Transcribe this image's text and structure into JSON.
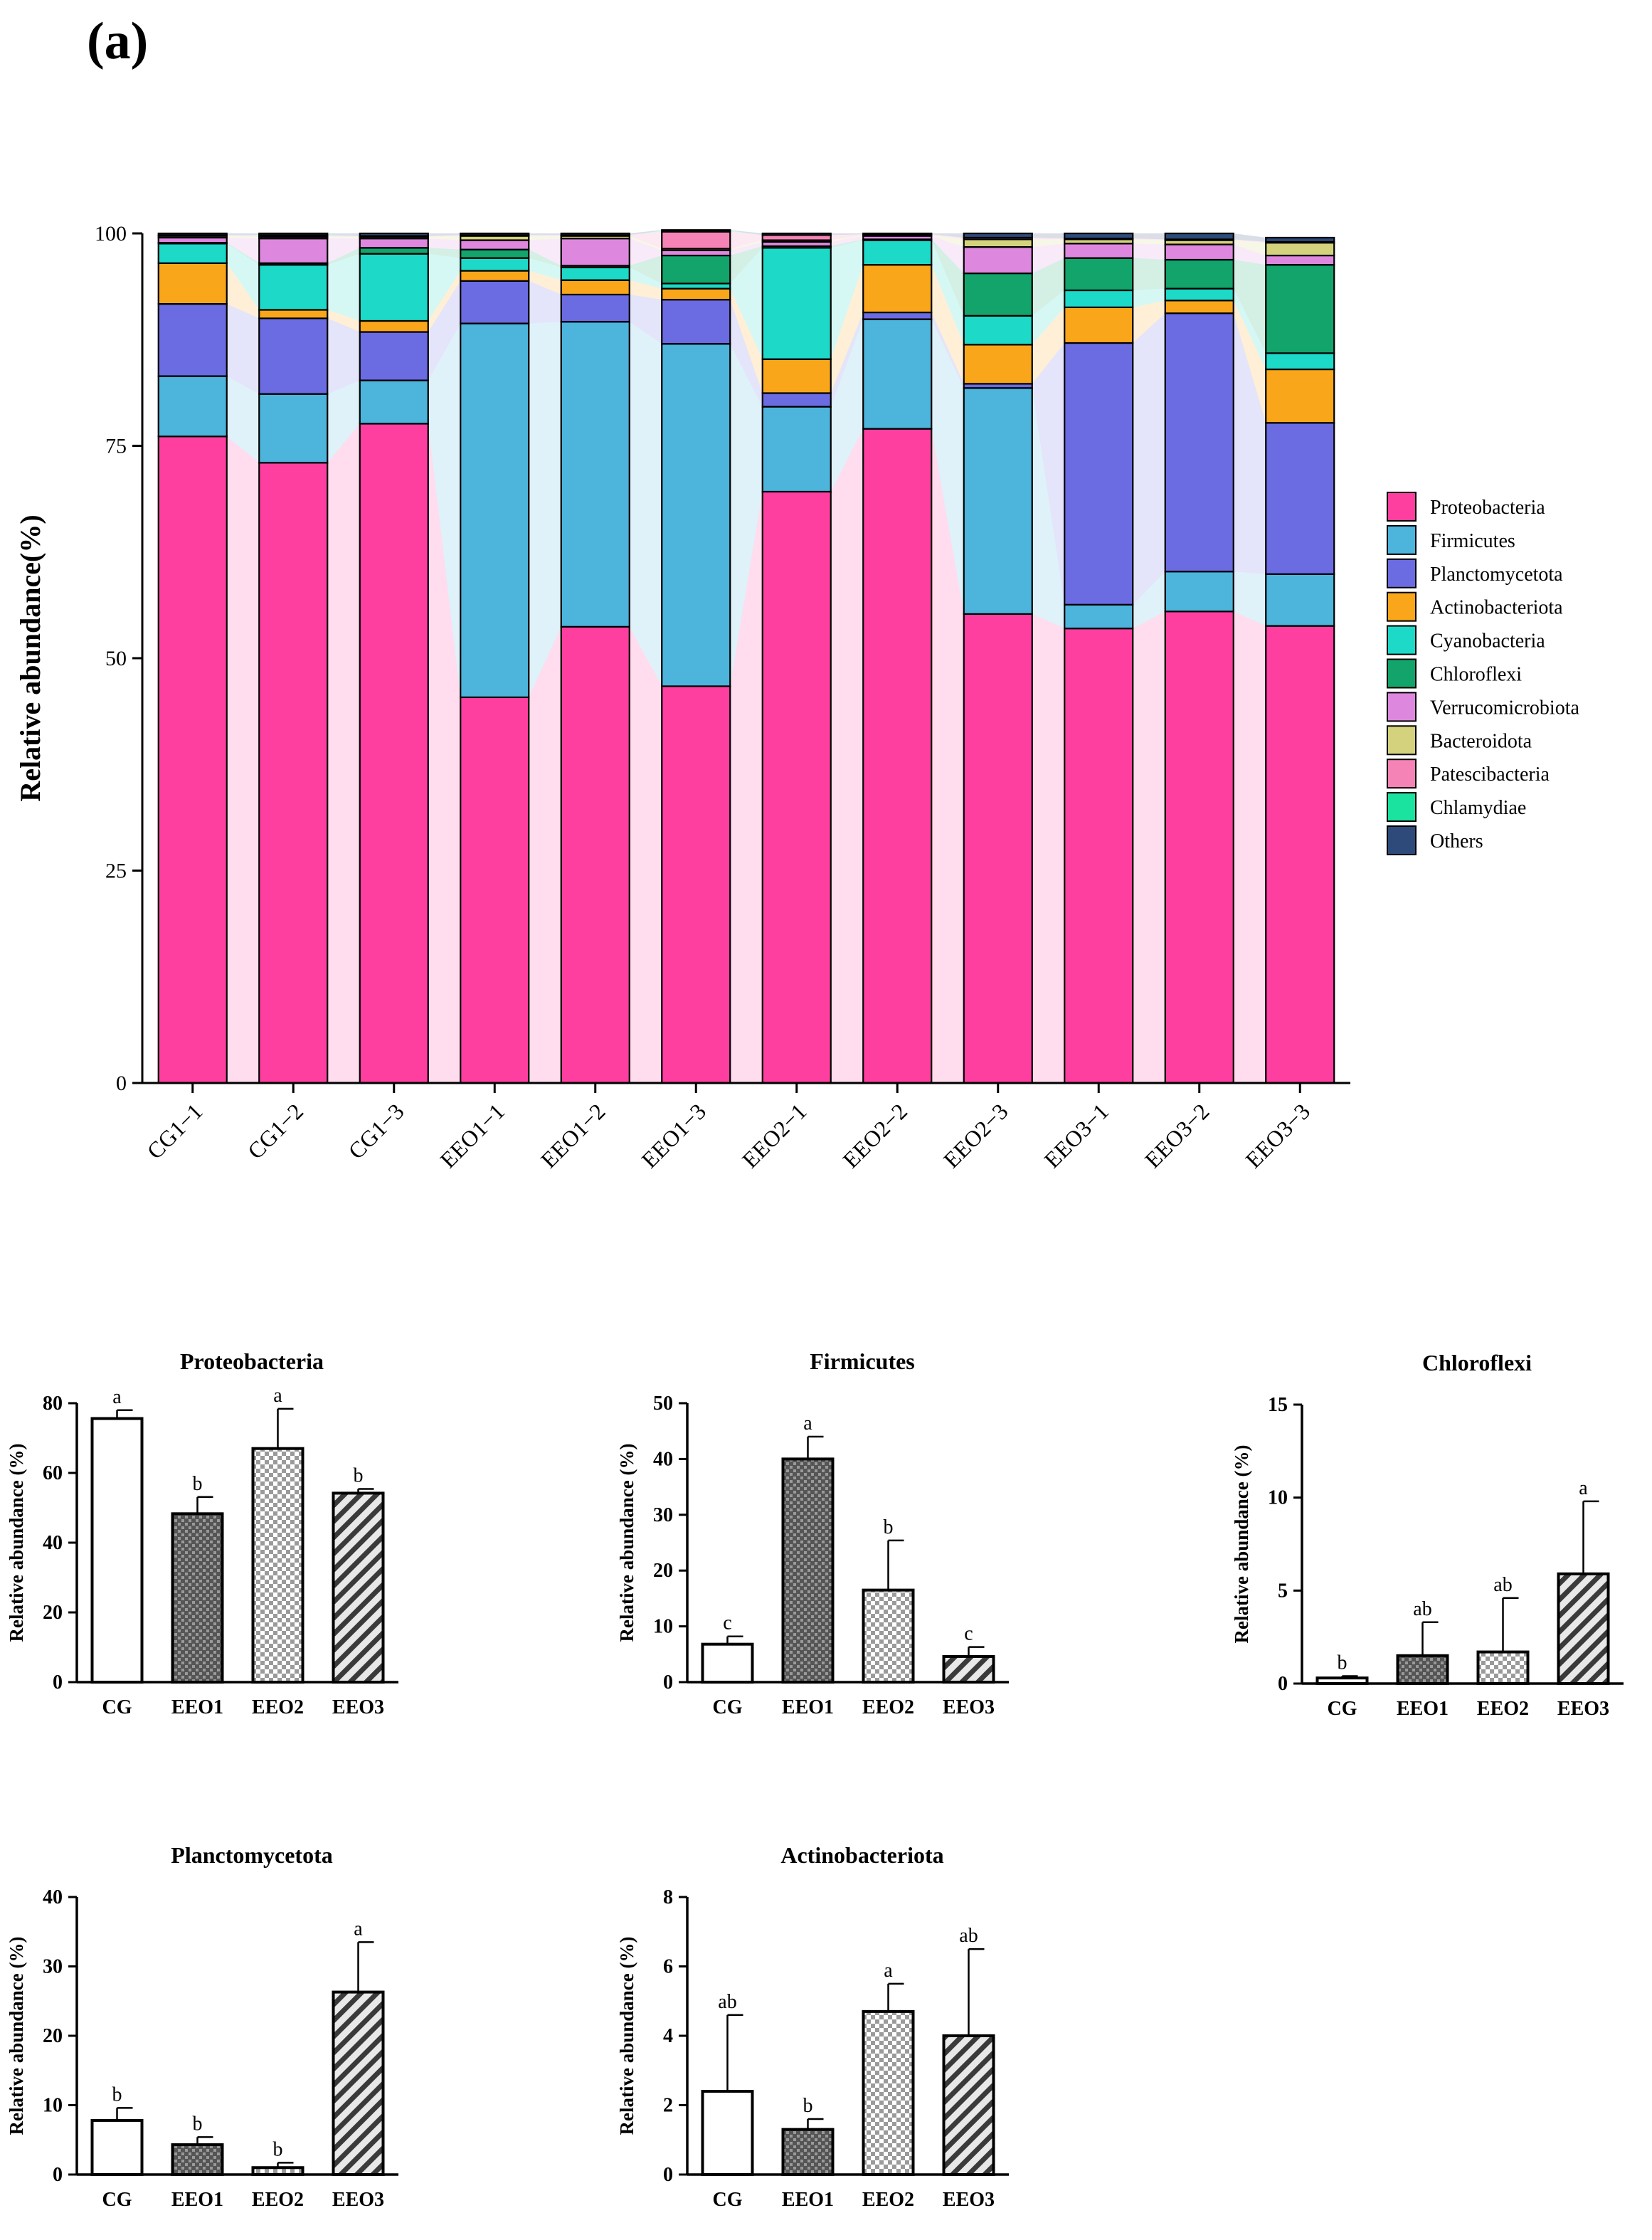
{
  "panel_label": "(a)",
  "colors": {
    "Proteobacteria": "#ff3fa0",
    "Firmicutes": "#4db4dc",
    "Planctomycetota": "#6b6be2",
    "Actinobacteriota": "#f9a61a",
    "Cyanobacteria": "#1dd9c7",
    "Chloroflexi": "#12a46a",
    "Verrucomicrobiota": "#dd88de",
    "Bacteroidota": "#d4d27c",
    "Patescibacteria": "#f683b5",
    "Chlamydiae": "#1ae39f",
    "Others": "#2d4a7a"
  },
  "chart_data": [
    {
      "type": "stacked-bar",
      "title": "",
      "ylabel": "Relative abundance(%)",
      "xlabel": "",
      "ylim": [
        0,
        100
      ],
      "yticks": [
        0,
        25,
        50,
        75,
        100
      ],
      "legend_position": "right",
      "categories": [
        "CG1−1",
        "CG1−2",
        "CG1−3",
        "EEO1−1",
        "EEO1−2",
        "EEO1−3",
        "EEO2−1",
        "EEO2−2",
        "EEO2−3",
        "EEO3−1",
        "EEO3−2",
        "EEO3−3"
      ],
      "series": [
        {
          "name": "Proteobacteria",
          "values": [
            76.1,
            73.0,
            77.6,
            45.4,
            53.7,
            46.7,
            69.6,
            77.0,
            55.2,
            53.5,
            55.5,
            53.8
          ]
        },
        {
          "name": "Firmicutes",
          "values": [
            7.1,
            8.1,
            5.1,
            44.0,
            35.9,
            40.3,
            10.0,
            12.9,
            26.6,
            2.8,
            4.7,
            6.1
          ]
        },
        {
          "name": "Planctomycetota",
          "values": [
            8.5,
            8.9,
            5.7,
            5.0,
            3.2,
            5.2,
            1.6,
            0.8,
            0.5,
            30.8,
            30.4,
            17.8
          ]
        },
        {
          "name": "Actinobacteriota",
          "values": [
            4.8,
            1.0,
            1.3,
            1.2,
            1.7,
            1.3,
            4.0,
            5.6,
            4.6,
            4.2,
            1.5,
            6.3
          ]
        },
        {
          "name": "Cyanobacteria",
          "values": [
            2.3,
            5.3,
            7.9,
            1.5,
            1.5,
            0.6,
            13.1,
            2.9,
            3.4,
            2.0,
            1.4,
            1.9
          ]
        },
        {
          "name": "Chloroflexi",
          "values": [
            0.1,
            0.2,
            0.7,
            1.0,
            0.2,
            3.3,
            0.2,
            0.1,
            5.0,
            3.8,
            3.4,
            10.4
          ]
        },
        {
          "name": "Verrucomicrobiota",
          "values": [
            0.6,
            2.9,
            1.1,
            1.1,
            3.2,
            0.6,
            0.5,
            0.4,
            3.1,
            1.7,
            1.8,
            1.1
          ]
        },
        {
          "name": "Bacteroidota",
          "values": [
            0.2,
            0.2,
            0.2,
            0.5,
            0.3,
            0.2,
            0.2,
            0.1,
            0.9,
            0.5,
            0.5,
            1.5
          ]
        },
        {
          "name": "Patescibacteria",
          "values": [
            0.1,
            0.1,
            0.1,
            0.1,
            0.1,
            2.0,
            0.6,
            0.1,
            0.2,
            0.1,
            0.1,
            0.1
          ]
        },
        {
          "name": "Chlamydiae",
          "values": [
            0.0,
            0.1,
            0.0,
            0.0,
            0.0,
            0.1,
            0.0,
            0.0,
            0.0,
            0.0,
            0.0,
            0.0
          ]
        },
        {
          "name": "Others",
          "values": [
            0.2,
            0.2,
            0.3,
            0.2,
            0.2,
            0.1,
            0.2,
            0.1,
            0.5,
            0.6,
            0.7,
            0.5
          ]
        }
      ]
    },
    {
      "type": "bar",
      "title": "Proteobacteria",
      "ylabel": "Relative abundance (%)",
      "ylim": [
        0,
        80
      ],
      "yticks": [
        0,
        20,
        40,
        60,
        80
      ],
      "categories": [
        "CG",
        "EEO1",
        "EEO2",
        "EEO3"
      ],
      "values": [
        75.6,
        48.3,
        67.0,
        54.2
      ],
      "errors": [
        2.4,
        4.8,
        11.4,
        1.2
      ],
      "letters": [
        "a",
        "b",
        "a",
        "b"
      ],
      "patterns": [
        "none",
        "dense",
        "check",
        "hatch"
      ]
    },
    {
      "type": "bar",
      "title": "Firmicutes",
      "ylabel": "Relative abundance (%)",
      "ylim": [
        0,
        50
      ],
      "yticks": [
        0,
        10,
        20,
        30,
        40,
        50
      ],
      "categories": [
        "CG",
        "EEO1",
        "EEO2",
        "EEO3"
      ],
      "values": [
        6.8,
        40.0,
        16.5,
        4.6
      ],
      "errors": [
        1.4,
        4.0,
        8.9,
        1.7
      ],
      "letters": [
        "c",
        "a",
        "b",
        "c"
      ],
      "patterns": [
        "none",
        "dense",
        "check",
        "hatch"
      ]
    },
    {
      "type": "bar",
      "title": "Chloroflexi",
      "ylabel": "Relative abundance (%)",
      "ylim": [
        0,
        15
      ],
      "yticks": [
        0,
        5,
        10,
        15
      ],
      "categories": [
        "CG",
        "EEO1",
        "EEO2",
        "EEO3"
      ],
      "values": [
        0.3,
        1.5,
        1.7,
        5.9
      ],
      "errors": [
        0.1,
        1.8,
        2.9,
        3.9
      ],
      "letters": [
        "b",
        "ab",
        "ab",
        "a"
      ],
      "patterns": [
        "none",
        "dense",
        "check",
        "hatch"
      ]
    },
    {
      "type": "bar",
      "title": "Planctomycetota",
      "ylabel": "Relative abundance (%)",
      "ylim": [
        0,
        40
      ],
      "yticks": [
        0,
        10,
        20,
        30,
        40
      ],
      "categories": [
        "CG",
        "EEO1",
        "EEO2",
        "EEO3"
      ],
      "values": [
        7.8,
        4.3,
        1.0,
        26.3
      ],
      "errors": [
        1.8,
        1.1,
        0.7,
        7.2
      ],
      "letters": [
        "b",
        "b",
        "b",
        "a"
      ],
      "patterns": [
        "none",
        "dense",
        "check",
        "hatch"
      ]
    },
    {
      "type": "bar",
      "title": "Actinobacteriota",
      "ylabel": "Relative abundance (%)",
      "ylim": [
        0,
        8
      ],
      "yticks": [
        0,
        2,
        4,
        6,
        8
      ],
      "categories": [
        "CG",
        "EEO1",
        "EEO2",
        "EEO3"
      ],
      "values": [
        2.4,
        1.3,
        4.7,
        4.0
      ],
      "errors": [
        2.2,
        0.3,
        0.8,
        2.5
      ],
      "letters": [
        "ab",
        "b",
        "a",
        "ab"
      ],
      "patterns": [
        "none",
        "dense",
        "check",
        "hatch"
      ]
    }
  ]
}
